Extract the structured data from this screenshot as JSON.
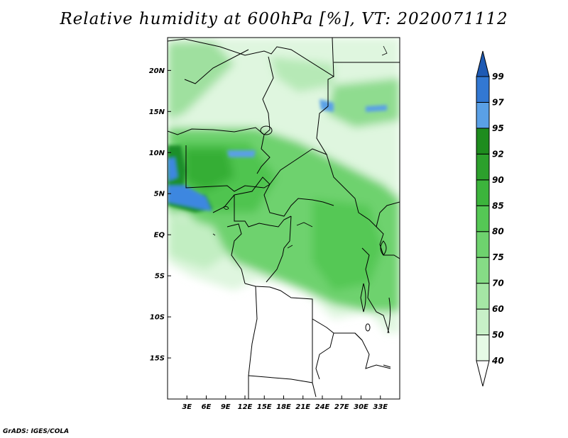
{
  "title": "Relative humidity at 600hPa [%], VT: 2020071112",
  "credit": "GrADS: IGES/COLA",
  "map": {
    "lon_range": [
      0,
      36
    ],
    "lat_range": [
      -20,
      24
    ],
    "lat_labels": [
      {
        "value": 20,
        "text": "20N"
      },
      {
        "value": 15,
        "text": "15N"
      },
      {
        "value": 10,
        "text": "10N"
      },
      {
        "value": 5,
        "text": "5N"
      },
      {
        "value": 0,
        "text": "EQ"
      },
      {
        "value": -5,
        "text": "5S"
      },
      {
        "value": -10,
        "text": "10S"
      },
      {
        "value": -15,
        "text": "15S"
      }
    ],
    "lon_labels": [
      {
        "value": 3,
        "text": "3E"
      },
      {
        "value": 6,
        "text": "6E"
      },
      {
        "value": 9,
        "text": "9E"
      },
      {
        "value": 12,
        "text": "12E"
      },
      {
        "value": 15,
        "text": "15E"
      },
      {
        "value": 18,
        "text": "18E"
      },
      {
        "value": 21,
        "text": "21E"
      },
      {
        "value": 24,
        "text": "24E"
      },
      {
        "value": 27,
        "text": "27E"
      },
      {
        "value": 30,
        "text": "30E"
      },
      {
        "value": 33,
        "text": "33E"
      }
    ]
  },
  "colorbar": {
    "levels": [
      "40",
      "50",
      "60",
      "70",
      "75",
      "80",
      "85",
      "90",
      "92",
      "95",
      "97",
      "99"
    ],
    "colors": [
      "#ffffff",
      "#e6fae6",
      "#c8f0c8",
      "#a5e6a5",
      "#86dc86",
      "#6ed26e",
      "#55c855",
      "#3cb43c",
      "#2ca02c",
      "#1e8c1e",
      "#5aa0e6",
      "#3278d2",
      "#1e5ab4"
    ]
  }
}
